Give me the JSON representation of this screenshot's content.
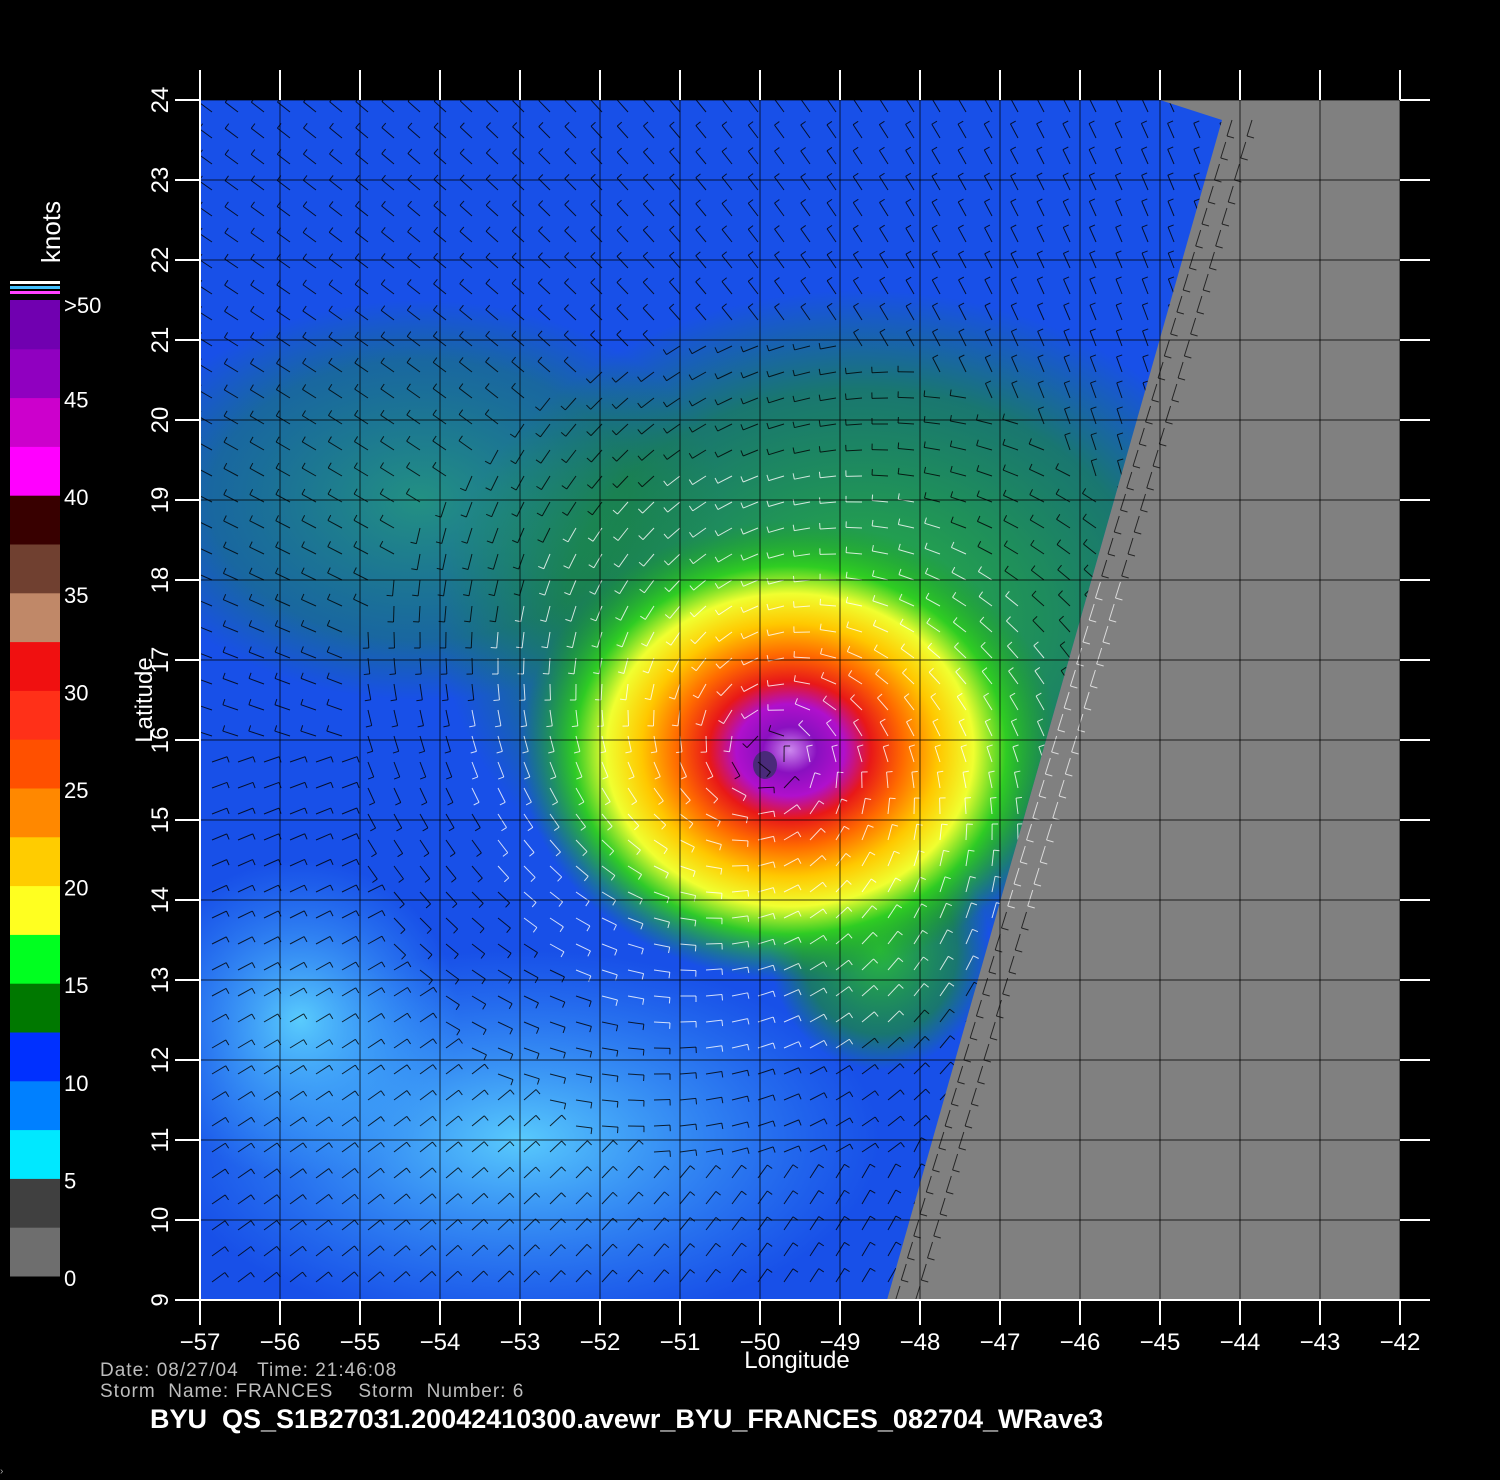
{
  "map": {
    "x_axis": {
      "label": "Longitude",
      "ticks": [
        "−57",
        "−56",
        "−55",
        "−54",
        "−53",
        "−52",
        "−51",
        "−50",
        "−49",
        "−48",
        "−47",
        "−46",
        "−45",
        "−44",
        "−43",
        "−42"
      ],
      "range": [
        -57,
        -42
      ]
    },
    "y_axis": {
      "label": "Latitude",
      "ticks": [
        "9",
        "10",
        "11",
        "12",
        "13",
        "14",
        "15",
        "16",
        "17",
        "18",
        "19",
        "20",
        "21",
        "22",
        "23",
        "24"
      ],
      "range": [
        9,
        24
      ]
    },
    "colorbar": {
      "unit": "knots",
      "labels": [
        "0",
        "5",
        "10",
        "15",
        "20",
        "25",
        "30",
        "35",
        "40",
        "45",
        ">50"
      ],
      "colors": [
        "#6e6e6e",
        "#404040",
        "#00e8ff",
        "#0080ff",
        "#0030ff",
        "#007800",
        "#00ff20",
        "#ffff20",
        "#ffcc00",
        "#ff8800",
        "#ff5000",
        "#ff3018",
        "#f01010",
        "#c08868",
        "#704030",
        "#380000",
        "#ff00ff",
        "#cc00cc",
        "#9000c0",
        "#7000b0"
      ]
    },
    "storm": {
      "center_lon": -49.9,
      "center_lat": 15.8,
      "name": "FRANCES"
    },
    "swath_edge_lon_at_bottom": -48.4,
    "swath_edge_lon_at_top": -44.2,
    "no_data_color": "#808080"
  },
  "info": {
    "date_line": "Date: 08/27/04   Time: 21:46:08",
    "storm_line": "Storm  Name: FRANCES    Storm  Number: 6",
    "file_name": "BYU  QS_S1B27031.20042410300.avewr_BYU_FRANCES_082704_WRave3"
  }
}
